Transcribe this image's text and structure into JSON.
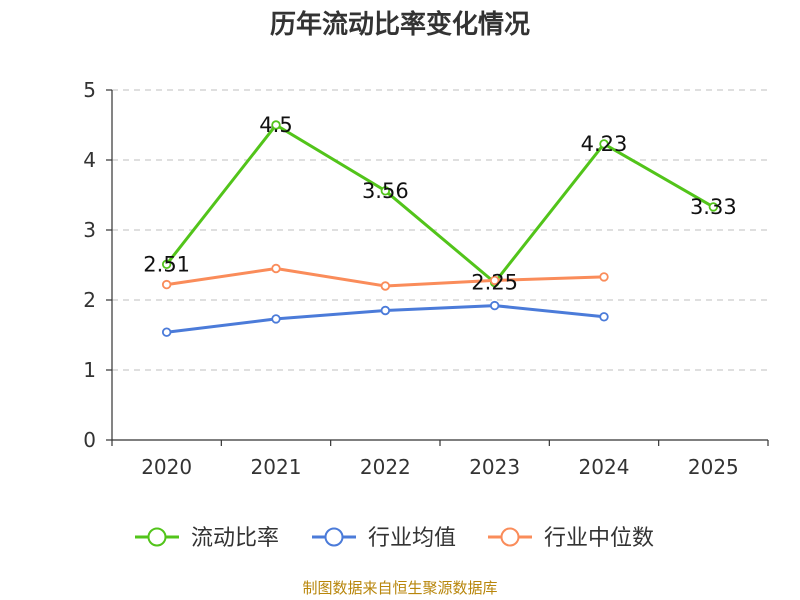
{
  "title": "历年流动比率变化情况",
  "source": "制图数据来自恒生聚源数据库",
  "chart_data": {
    "type": "line",
    "title": "历年流动比率变化情况",
    "categories": [
      "2020",
      "2021",
      "2022",
      "2023",
      "2024",
      "2025"
    ],
    "ylim": [
      0,
      5
    ],
    "yticks": [
      "0",
      "1",
      "2",
      "3",
      "4",
      "5"
    ],
    "grid": true,
    "legend_position": "bottom",
    "series": [
      {
        "name": "流动比率",
        "color": "#52c41a",
        "values": [
          2.51,
          4.5,
          3.56,
          2.25,
          4.23,
          3.33
        ],
        "labels": [
          "2.51",
          "4.5",
          "3.56",
          "2.25",
          "4.23",
          "3.33"
        ],
        "show_labels": true
      },
      {
        "name": "行业均值",
        "color": "#4b7bd9",
        "values": [
          1.54,
          1.73,
          1.85,
          1.92,
          1.76,
          null
        ],
        "show_labels": false
      },
      {
        "name": "行业中位数",
        "color": "#fa8c5a",
        "values": [
          2.22,
          2.45,
          2.2,
          2.28,
          2.33,
          null
        ],
        "show_labels": false
      }
    ]
  }
}
